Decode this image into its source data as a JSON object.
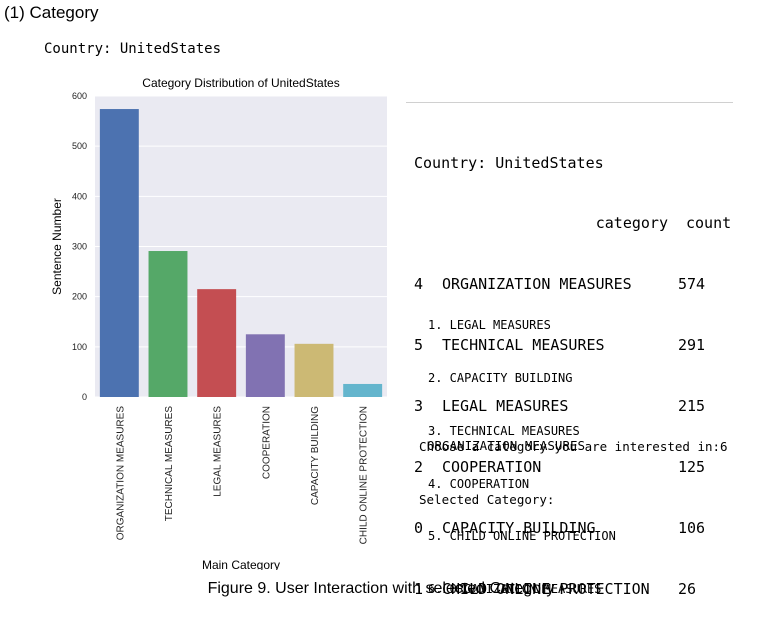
{
  "heading": "(1) Category",
  "country_line": "Country: UnitedStates",
  "caption": "Figure 9. User Interaction with selected Category",
  "chart_data": {
    "type": "bar",
    "title": "Category Distribution of UnitedStates",
    "xlabel": "Main Category",
    "ylabel": "Sentence Number",
    "categories": [
      "ORGANIZATION MEASURES",
      "TECHNICAL MEASURES",
      "LEGAL MEASURES",
      "COOPERATION",
      "CAPACITY BUILDING",
      "CHILD ONLINE PROTECTION"
    ],
    "values": [
      574,
      291,
      215,
      125,
      106,
      26
    ],
    "colors": [
      "#4c72b0",
      "#55a868",
      "#c44e52",
      "#8172b2",
      "#ccb974",
      "#64b5cd"
    ],
    "yticks": [
      0,
      100,
      200,
      300,
      400,
      500,
      600
    ],
    "ylim": [
      0,
      600
    ],
    "grid": true,
    "background": "#eaeaf2"
  },
  "console": {
    "country_line": "Country: UnitedStates",
    "header": {
      "category": "category",
      "count": "count"
    },
    "rows": [
      {
        "idx": "4",
        "category": "ORGANIZATION MEASURES",
        "count": "574"
      },
      {
        "idx": "5",
        "category": "TECHNICAL MEASURES",
        "count": "291"
      },
      {
        "idx": "3",
        "category": "LEGAL MEASURES",
        "count": "215"
      },
      {
        "idx": "2",
        "category": "COOPERATION",
        "count": "125"
      },
      {
        "idx": "0",
        "category": "CAPACITY BUILDING",
        "count": "106"
      },
      {
        "idx": "1",
        "category": "CHILD ONLINE PROTECTION",
        "count": "26"
      }
    ],
    "options": [
      "1. LEGAL MEASURES",
      "2. CAPACITY BUILDING",
      "3. TECHNICAL MEASURES",
      "4. COOPERATION",
      "5. CHILD ONLINE PROTECTION",
      "6. ORGANIZATION MEASURES"
    ],
    "prompt": "Choose a category you are interested in:6",
    "selected_label": "Selected Category:",
    "selected_value": "ORGANIZATION MEASURES"
  }
}
